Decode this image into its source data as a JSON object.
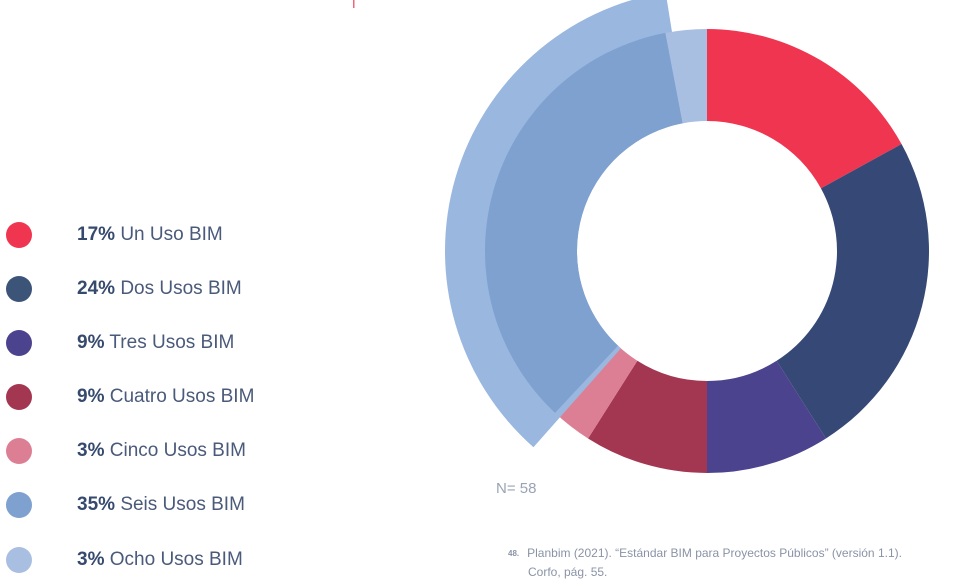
{
  "chart_data": {
    "type": "pie",
    "slices": [
      {
        "pct": "17%",
        "label": "Un Uso BIM",
        "value": 17,
        "color": "#ef3550"
      },
      {
        "pct": "24%",
        "label": "Dos Usos BIM",
        "value": 24,
        "color": "#364875"
      },
      {
        "pct": "9%",
        "label": "Tres Usos BIM",
        "value": 9,
        "color": "#4b438e"
      },
      {
        "pct": "9%",
        "label": "Cuatro Usos BIM",
        "value": 9,
        "color": "#a33752"
      },
      {
        "pct": "3%",
        "label": "Cinco Usos BIM",
        "value": 3,
        "color": "#dd7f94"
      },
      {
        "pct": "35%",
        "label": "Seis Usos BIM",
        "value": 35,
        "color": "#7ea1cf",
        "highlight_color": "#9ab7e0",
        "exploded": true
      },
      {
        "pct": "3%",
        "label": "Ocho Usos BIM",
        "value": 3,
        "color": "#a9bfe2"
      }
    ],
    "sample_label": "N= 58",
    "legend_position": "left"
  },
  "footnote": {
    "number": "48.",
    "line1": "Planbim (2021). “Estándar BIM para Proyectos Públicos” (versión 1.1).",
    "line2": "Corfo, pág. 55."
  }
}
